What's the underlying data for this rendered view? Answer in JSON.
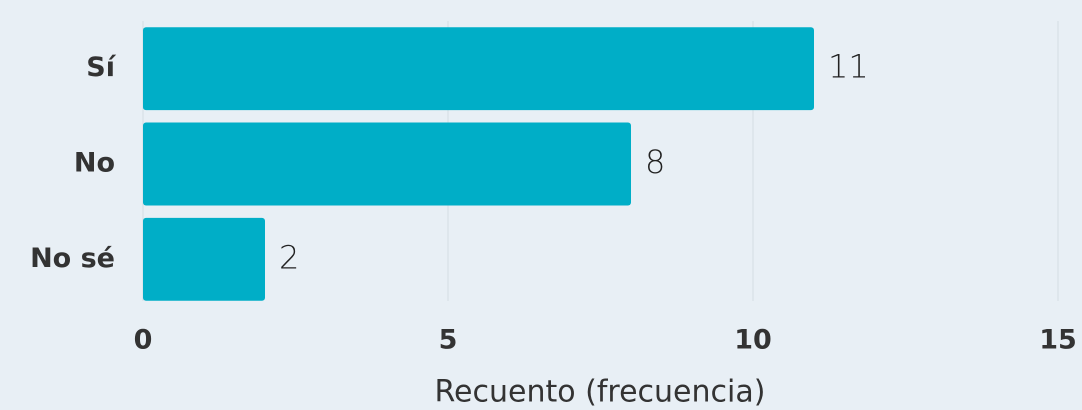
{
  "chart_data": {
    "type": "barh",
    "categories": [
      "Sí",
      "No",
      "No sé"
    ],
    "values": [
      11,
      8,
      2
    ],
    "color": "#00aec7",
    "xlabel": "Recuento (frecuencia)",
    "xlim": [
      0,
      15
    ],
    "xticks": [
      0,
      5,
      10,
      15
    ],
    "grid": true
  }
}
